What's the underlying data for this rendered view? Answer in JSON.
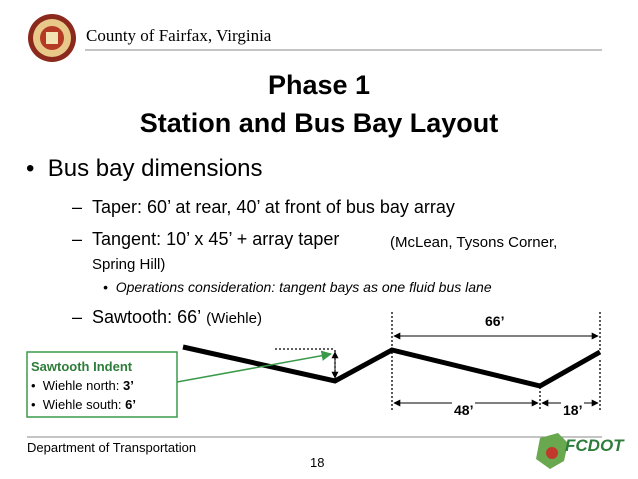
{
  "header": {
    "organization": "County of Fairfax, Virginia"
  },
  "title": {
    "line1": "Phase 1",
    "line2": "Station and Bus Bay Layout"
  },
  "bullets": {
    "main": "Bus bay dimensions",
    "items": [
      {
        "text": "Taper: 60’ at rear, 40’ at front of bus bay array"
      },
      {
        "text": "Tangent: 10’ x 45’ + array taper",
        "note": "(McLean, Tysons Corner, Spring Hill)",
        "sub": "Operations consideration: tangent bays as one fluid bus lane"
      },
      {
        "text": "Sawtooth: 66’",
        "note": "(Wiehle)"
      }
    ]
  },
  "diagram": {
    "top_dimension": "66’",
    "bottom_left_dimension": "48’",
    "bottom_right_dimension": "18’"
  },
  "callout": {
    "title": "Sawtooth Indent",
    "items": [
      {
        "label": "Wiehle north: ",
        "value": "3’"
      },
      {
        "label": "Wiehle south: ",
        "value": "6’"
      }
    ]
  },
  "footer": {
    "department": "Department of Transportation",
    "page": "18",
    "logo": "FCDOT"
  }
}
